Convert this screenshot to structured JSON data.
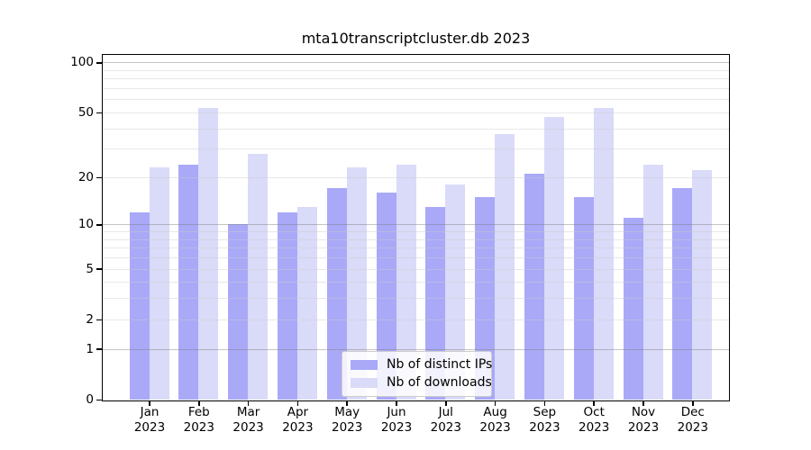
{
  "figure": {
    "title": "mta10transcriptcluster.db 2023"
  },
  "chart_data": {
    "type": "bar",
    "title": "mta10transcriptcluster.db 2023",
    "categories": [
      "Jan",
      "Feb",
      "Mar",
      "Apr",
      "May",
      "Jun",
      "Jul",
      "Aug",
      "Sep",
      "Oct",
      "Nov",
      "Dec"
    ],
    "year_label": "2023",
    "series": [
      {
        "name": "Nb of distinct IPs",
        "color": "#a9a9f8",
        "values": [
          12,
          24,
          10,
          12,
          17,
          16,
          13,
          15,
          21,
          15,
          11,
          17
        ]
      },
      {
        "name": "Nb of downloads",
        "color": "#dadaf9",
        "values": [
          23,
          53,
          28,
          13,
          23,
          24,
          18,
          37,
          47,
          53,
          24,
          22
        ]
      }
    ],
    "yscale": "log(1+y)",
    "ylim": [
      0,
      113
    ],
    "yticks": [
      0,
      1,
      2,
      5,
      10,
      20,
      50,
      100
    ],
    "major_gridlines": [
      1,
      10,
      100
    ],
    "minor_gridlines": [
      2,
      3,
      4,
      5,
      6,
      7,
      8,
      9,
      20,
      30,
      40,
      50,
      60,
      70,
      80,
      90
    ],
    "grid": true,
    "legend": {
      "position": "lower center",
      "entries": [
        "Nb of distinct IPs",
        "Nb of downloads"
      ]
    }
  },
  "colors": {
    "bar_ips": "#a9a9f8",
    "bar_downloads": "#dadaf9",
    "axis": "#000000",
    "grid_major": "#c9c9c9",
    "grid_minor": "#e9e9e9",
    "legend_border": "#cccccc"
  }
}
